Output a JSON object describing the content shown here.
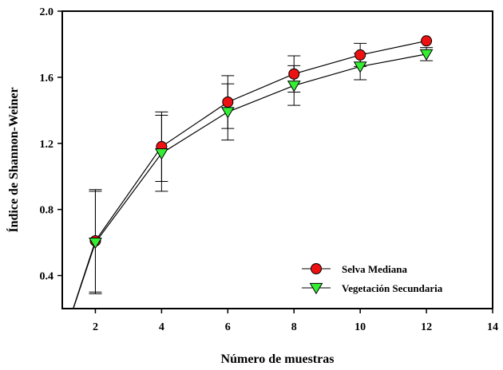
{
  "chart_data": {
    "type": "line",
    "title": "",
    "xlabel": "Número de muestras",
    "ylabel": "Índice de Shannon-Weiner",
    "xlim": [
      1,
      14
    ],
    "ylim": [
      0.2,
      2.0
    ],
    "xticks": [
      2,
      4,
      6,
      8,
      10,
      12,
      14
    ],
    "xtick_labels": [
      "2",
      "4",
      "6",
      "8",
      "10",
      "12",
      "14"
    ],
    "yticks": [
      0.4,
      0.8,
      1.2,
      1.6,
      2.0
    ],
    "ytick_labels": [
      "0.4",
      "0.8",
      "1.2",
      "1.6",
      "2.0"
    ],
    "grid": false,
    "legend_position": "bottom-right",
    "series": [
      {
        "name": "Selva Mediana",
        "marker": "circle",
        "marker_color": "#ee1111",
        "x": [
          1,
          2,
          4,
          6,
          8,
          10,
          12
        ],
        "y": [
          0.0,
          0.61,
          1.18,
          1.45,
          1.62,
          1.735,
          1.82
        ],
        "err": [
          0,
          0.31,
          0.21,
          0.16,
          0.11,
          0.07,
          0
        ]
      },
      {
        "name": "Vegetación Secundaria",
        "marker": "triangle-down",
        "marker_color": "#33ee33",
        "x": [
          1,
          2,
          4,
          6,
          8,
          10,
          12
        ],
        "y": [
          0.0,
          0.6,
          1.14,
          1.39,
          1.55,
          1.665,
          1.74
        ],
        "err": [
          0,
          0.31,
          0.23,
          0.17,
          0.12,
          0.08,
          0.04
        ]
      }
    ]
  }
}
